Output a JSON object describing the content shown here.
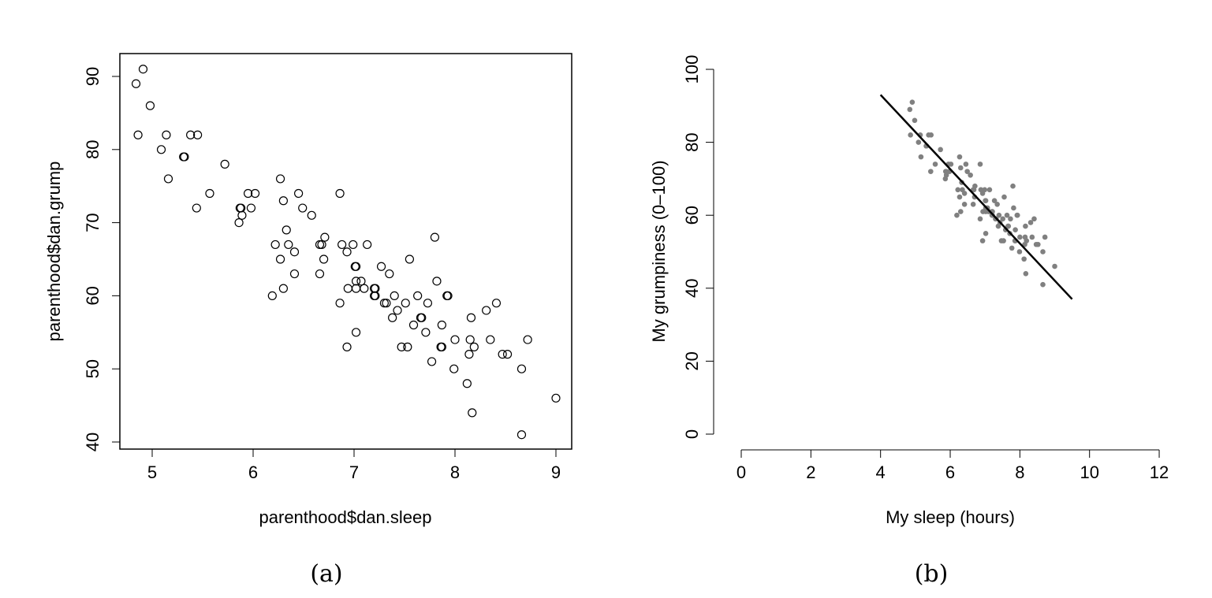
{
  "chart_data": [
    {
      "type": "scatter",
      "caption": "(a)",
      "xlabel": "parenthood$dan.sleep",
      "ylabel": "parenthood$dan.grump",
      "xlim": [
        4.7,
        9.15
      ],
      "ylim": [
        38.5,
        93.5
      ],
      "xticks": [
        5,
        6,
        7,
        8,
        9
      ],
      "yticks": [
        40,
        50,
        60,
        70,
        80,
        90
      ],
      "marker": "open-circle",
      "box": true,
      "points": [
        [
          4.84,
          89
        ],
        [
          4.91,
          91
        ],
        [
          4.98,
          86
        ],
        [
          4.86,
          82
        ],
        [
          5.09,
          80
        ],
        [
          5.14,
          82
        ],
        [
          5.16,
          76
        ],
        [
          5.31,
          79
        ],
        [
          5.32,
          79
        ],
        [
          5.38,
          82
        ],
        [
          5.45,
          82
        ],
        [
          5.44,
          72
        ],
        [
          5.57,
          74
        ],
        [
          5.72,
          78
        ],
        [
          5.87,
          72
        ],
        [
          5.88,
          72
        ],
        [
          5.89,
          71
        ],
        [
          5.86,
          70
        ],
        [
          5.95,
          74
        ],
        [
          5.98,
          72
        ],
        [
          6.02,
          74
        ],
        [
          6.19,
          60
        ],
        [
          6.22,
          67
        ],
        [
          6.27,
          76
        ],
        [
          6.27,
          65
        ],
        [
          6.3,
          73
        ],
        [
          6.3,
          61
        ],
        [
          6.33,
          69
        ],
        [
          6.35,
          67
        ],
        [
          6.41,
          66
        ],
        [
          6.41,
          63
        ],
        [
          6.45,
          74
        ],
        [
          6.49,
          72
        ],
        [
          6.58,
          71
        ],
        [
          6.66,
          67
        ],
        [
          6.66,
          63
        ],
        [
          6.68,
          67
        ],
        [
          6.7,
          65
        ],
        [
          6.71,
          68
        ],
        [
          6.86,
          59
        ],
        [
          6.86,
          74
        ],
        [
          6.88,
          67
        ],
        [
          6.93,
          66
        ],
        [
          6.93,
          53
        ],
        [
          6.94,
          61
        ],
        [
          6.99,
          67
        ],
        [
          7.01,
          64
        ],
        [
          7.02,
          64
        ],
        [
          7.02,
          55
        ],
        [
          7.02,
          62
        ],
        [
          7.02,
          61
        ],
        [
          7.07,
          62
        ],
        [
          7.1,
          61
        ],
        [
          7.13,
          67
        ],
        [
          7.2,
          60
        ],
        [
          7.2,
          61
        ],
        [
          7.21,
          60
        ],
        [
          7.21,
          61
        ],
        [
          7.27,
          64
        ],
        [
          7.3,
          59
        ],
        [
          7.32,
          59
        ],
        [
          7.35,
          63
        ],
        [
          7.38,
          57
        ],
        [
          7.4,
          60
        ],
        [
          7.43,
          58
        ],
        [
          7.47,
          53
        ],
        [
          7.51,
          59
        ],
        [
          7.53,
          53
        ],
        [
          7.55,
          65
        ],
        [
          7.59,
          56
        ],
        [
          7.63,
          60
        ],
        [
          7.66,
          57
        ],
        [
          7.67,
          57
        ],
        [
          7.71,
          55
        ],
        [
          7.73,
          59
        ],
        [
          7.77,
          51
        ],
        [
          7.8,
          68
        ],
        [
          7.82,
          62
        ],
        [
          7.86,
          53
        ],
        [
          7.87,
          53
        ],
        [
          7.87,
          56
        ],
        [
          7.92,
          60
        ],
        [
          7.93,
          60
        ],
        [
          8.0,
          54
        ],
        [
          7.99,
          50
        ],
        [
          8.12,
          48
        ],
        [
          8.14,
          52
        ],
        [
          8.15,
          54
        ],
        [
          8.16,
          57
        ],
        [
          8.17,
          44
        ],
        [
          8.19,
          53
        ],
        [
          8.31,
          58
        ],
        [
          8.35,
          54
        ],
        [
          8.41,
          59
        ],
        [
          8.47,
          52
        ],
        [
          8.52,
          52
        ],
        [
          8.66,
          50
        ],
        [
          8.66,
          41
        ],
        [
          8.72,
          54
        ],
        [
          9.0,
          46
        ]
      ]
    },
    {
      "type": "scatter",
      "caption": "(b)",
      "xlabel": "My sleep (hours)",
      "ylabel": "My grumpiness (0–100)",
      "xlim": [
        0,
        12
      ],
      "ylim": [
        0,
        100
      ],
      "xticks": [
        0,
        2,
        4,
        6,
        8,
        10,
        12
      ],
      "yticks": [
        0,
        20,
        40,
        60,
        80,
        100
      ],
      "marker": "filled-circle",
      "marker_color": "#808080",
      "box": false,
      "regression_line": {
        "from": [
          4,
          93
        ],
        "to": [
          9.5,
          37
        ],
        "color": "#000000"
      },
      "points_same_as": "(a)"
    }
  ]
}
